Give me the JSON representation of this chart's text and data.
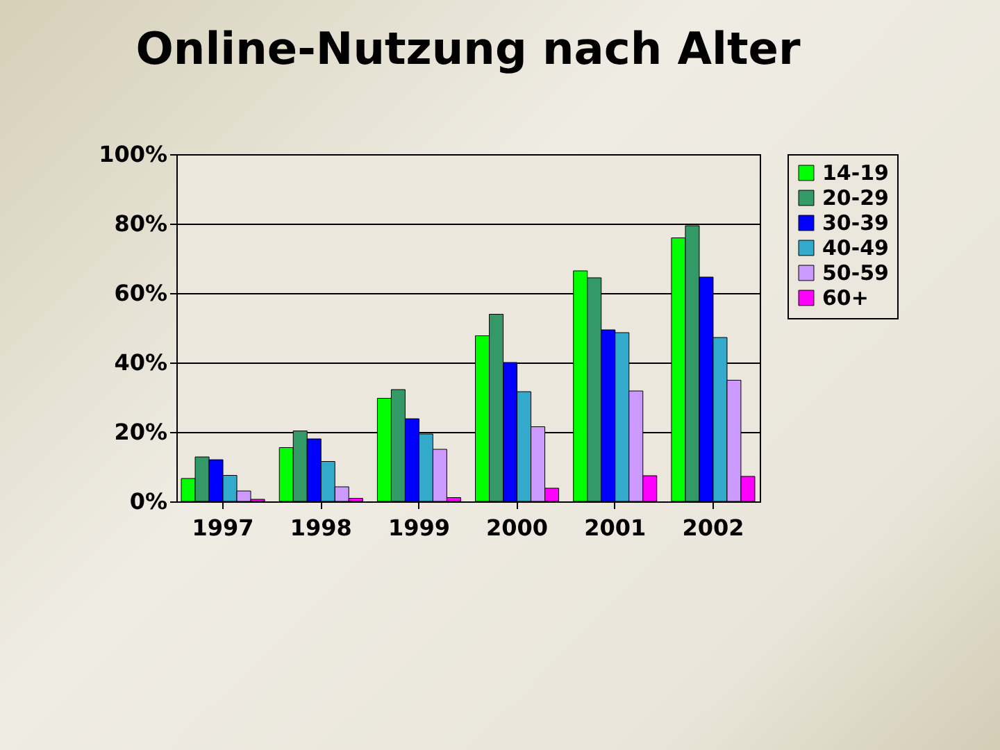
{
  "chart_data": {
    "type": "bar",
    "title": "Online-Nutzung nach Alter",
    "categories": [
      "1997",
      "1998",
      "1999",
      "2000",
      "2001",
      "2002"
    ],
    "series": [
      {
        "name": "14-19",
        "color": "#00ff00",
        "values": [
          6.6,
          15.5,
          29.7,
          47.7,
          66.4,
          75.9
        ]
      },
      {
        "name": "20-29",
        "color": "#339966",
        "values": [
          12.8,
          20.3,
          32.2,
          53.9,
          64.4,
          79.4
        ]
      },
      {
        "name": "30-39",
        "color": "#0000ff",
        "values": [
          12,
          18,
          23.8,
          40,
          49.4,
          64.6
        ]
      },
      {
        "name": "40-49",
        "color": "#33aacc",
        "values": [
          7.5,
          11.5,
          19.4,
          31.6,
          48.6,
          47.2
        ]
      },
      {
        "name": "50-59",
        "color": "#cc99ff",
        "values": [
          3,
          4.2,
          15,
          21.5,
          31.8,
          34.9
        ]
      },
      {
        "name": "60+",
        "color": "#ff00ff",
        "values": [
          0.6,
          0.9,
          1.1,
          3.8,
          7.4,
          7.2
        ]
      }
    ],
    "ylim": [
      0,
      100
    ],
    "yticks": [
      {
        "value": 0,
        "label": "0%"
      },
      {
        "value": 20,
        "label": "20%"
      },
      {
        "value": 40,
        "label": "40%"
      },
      {
        "value": 60,
        "label": "60%"
      },
      {
        "value": 80,
        "label": "80%"
      },
      {
        "value": 100,
        "label": "100%"
      }
    ],
    "grid": "y",
    "legend": "right"
  }
}
